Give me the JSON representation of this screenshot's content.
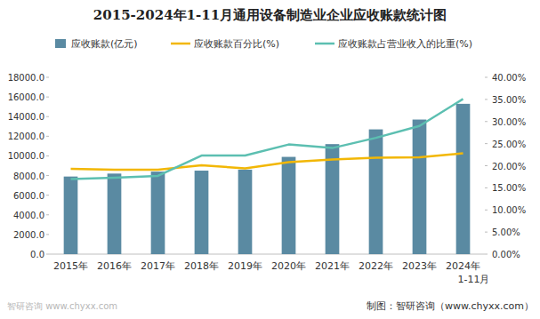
{
  "chart_data": {
    "type": "bar",
    "title": "2015-2024年1-11月通用设备制造业企业应收账款统计图",
    "categories": [
      "2015年",
      "2016年",
      "2017年",
      "2018年",
      "2019年",
      "2020年",
      "2021年",
      "2022年",
      "2023年",
      "2024年1-11月"
    ],
    "series": [
      {
        "name": "应收账款(亿元)",
        "type": "bar",
        "color": "#5a8aa2",
        "values": [
          7900,
          8200,
          8400,
          8500,
          8600,
          9900,
          11200,
          12700,
          13700,
          15300
        ]
      },
      {
        "name": "应收账款百分比(%)",
        "type": "line",
        "axis": "y2",
        "color": "#f2b705",
        "values": [
          19.3,
          19.1,
          19.1,
          20.1,
          19.4,
          20.8,
          21.4,
          21.8,
          21.9,
          22.8
        ]
      },
      {
        "name": "应收账款占营业收入的比重(%)",
        "type": "line",
        "axis": "y2",
        "color": "#5cbfb1",
        "values": [
          17.0,
          17.3,
          17.7,
          22.3,
          22.3,
          24.8,
          24.0,
          26.3,
          29.0,
          35.1
        ]
      }
    ],
    "ylim": [
      0,
      18000
    ],
    "yticks": [
      {
        "value": 0,
        "label": "0.0"
      },
      {
        "value": 2000,
        "label": "2000.0"
      },
      {
        "value": 4000,
        "label": "4000.0"
      },
      {
        "value": 6000,
        "label": "6000.0"
      },
      {
        "value": 8000,
        "label": "8000.0"
      },
      {
        "value": 10000,
        "label": "10000.0"
      },
      {
        "value": 12000,
        "label": "12000.0"
      },
      {
        "value": 14000,
        "label": "14000.0"
      },
      {
        "value": 16000,
        "label": "16000.0"
      },
      {
        "value": 18000,
        "label": "18000.0"
      }
    ],
    "y2lim": [
      0,
      40
    ],
    "y2ticks": [
      {
        "value": 0,
        "label": "0.00%"
      },
      {
        "value": 5,
        "label": "5.00%"
      },
      {
        "value": 10,
        "label": "10.00%"
      },
      {
        "value": 15,
        "label": "15.00%"
      },
      {
        "value": 20,
        "label": "20.00%"
      },
      {
        "value": 25,
        "label": "25.00%"
      },
      {
        "value": 30,
        "label": "30.00%"
      },
      {
        "value": 35,
        "label": "35.00%"
      },
      {
        "value": 40,
        "label": "40.00%"
      }
    ],
    "grid": false,
    "legend": "top",
    "annotations": [
      "制图：智研咨询（www.chyxx.com）",
      "智研咨询 www.chyxx.com"
    ]
  }
}
